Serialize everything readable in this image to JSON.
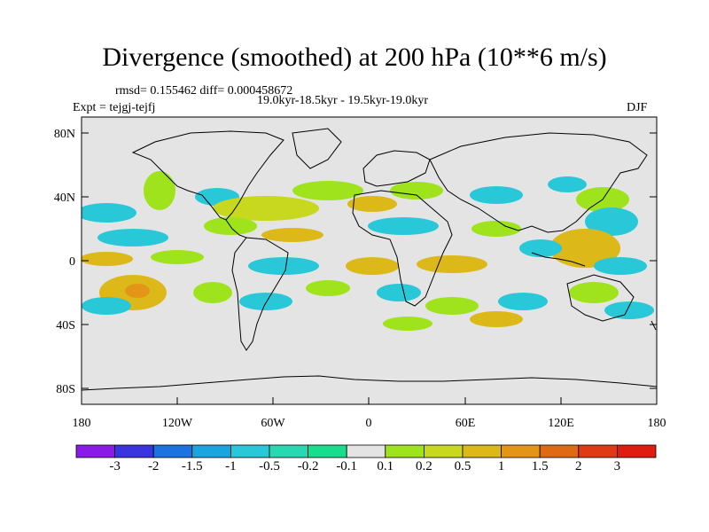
{
  "title": "Divergence (smoothed) at 200 hPa (10**6 m/s)",
  "stats": "rmsd= 0.155462 diff= 0.000458672",
  "period": "19.0kyr-18.5kyr - 19.5kyr-19.0kyr",
  "experiment": "Expt = tejgj-tejfj",
  "season": "DJF",
  "lat_ticks": [
    "80N",
    "40N",
    "0",
    "40S",
    "80S"
  ],
  "lon_ticks": [
    "180",
    "120W",
    "60W",
    "0",
    "60E",
    "120E",
    "180"
  ],
  "colorbar": {
    "labels": [
      "-3",
      "-2",
      "-1.5",
      "-1",
      "-0.5",
      "-0.2",
      "-0.1",
      "0.1",
      "0.2",
      "0.5",
      "1",
      "1.5",
      "2",
      "3"
    ],
    "colors": [
      "#8a1ae8",
      "#3a33e0",
      "#1a73e0",
      "#1aa5e0",
      "#28c8d8",
      "#28d8b0",
      "#17dd8c",
      "#e4e4e4",
      "#9ee31c",
      "#c8d81e",
      "#dcb818",
      "#e49416",
      "#e06a14",
      "#e03a14",
      "#e01c10"
    ]
  },
  "colors": {
    "land_background": "#e4e4e4",
    "coast": "#000000"
  }
}
